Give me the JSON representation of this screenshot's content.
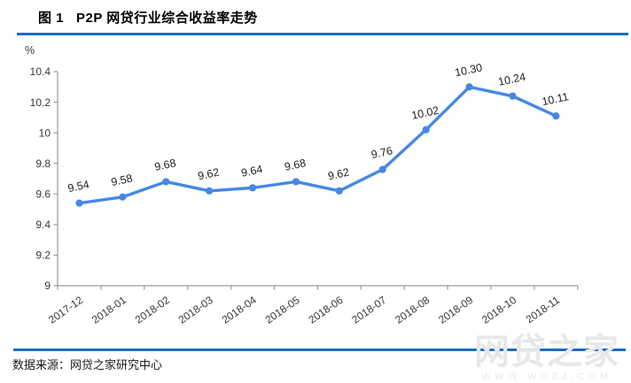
{
  "header": {
    "title": "图 1   P2P 网贷行业综合收益率走势"
  },
  "chart_data": {
    "type": "line",
    "title": "P2P 网贷行业综合收益率走势",
    "y_unit": "%",
    "xlabel": "",
    "ylabel": "%",
    "categories": [
      "2017-12",
      "2018-01",
      "2018-02",
      "2018-03",
      "2018-04",
      "2018-05",
      "2018-06",
      "2018-07",
      "2018-08",
      "2018-09",
      "2018-10",
      "2018-11"
    ],
    "values": [
      9.54,
      9.58,
      9.68,
      9.62,
      9.64,
      9.68,
      9.62,
      9.76,
      10.02,
      10.3,
      10.24,
      10.11
    ],
    "data_labels": [
      "9.54",
      "9.58",
      "9.68",
      "9.62",
      "9.64",
      "9.68",
      "9.62",
      "9.76",
      "10.02",
      "10.30",
      "10.24",
      "10.11"
    ],
    "ylim": [
      9,
      10.4
    ],
    "y_tick_values": [
      9,
      9.2,
      9.4,
      9.6,
      9.8,
      10,
      10.2,
      10.4
    ],
    "y_tick_labels": [
      "9",
      "9.2",
      "9.4",
      "9.6",
      "9.8",
      "10",
      "10.2",
      "10.4"
    ],
    "grid": false,
    "legend": "none",
    "line_color": "#4588e6",
    "marker": "circle"
  },
  "footer": {
    "source": "数据来源：网贷之家研究中心"
  },
  "watermark": {
    "text": "网贷之家",
    "url": "WWW.WDZJ.COM"
  },
  "colors": {
    "rule_blue": "#1b6cc2",
    "axis_gray": "#9a9a9a",
    "tick_text": "#3a3a3a",
    "label_text": "#1f1f1f"
  }
}
